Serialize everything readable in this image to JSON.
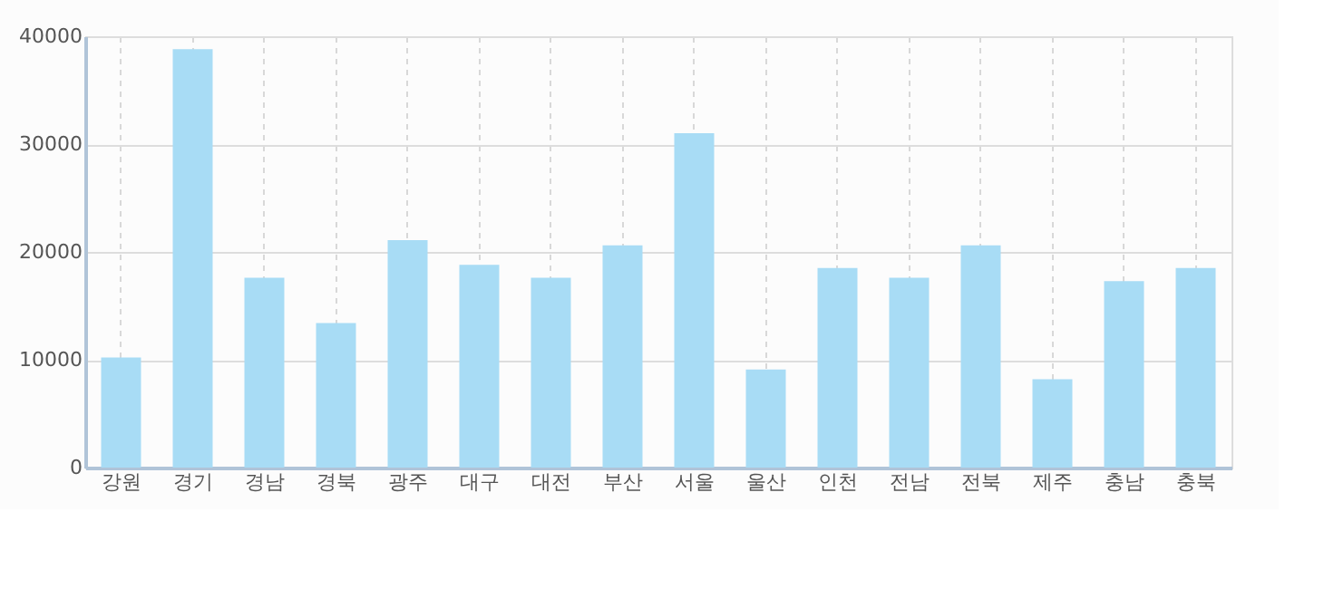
{
  "chart_data": {
    "type": "bar",
    "categories": [
      "강원",
      "경기",
      "경남",
      "경북",
      "광주",
      "대구",
      "대전",
      "부산",
      "서울",
      "울산",
      "인천",
      "전남",
      "전북",
      "제주",
      "충남",
      "충북"
    ],
    "series": [
      {
        "color": "#a8dcf5",
        "values": [
          10200,
          38800,
          17600,
          13400,
          21100,
          18800,
          17600,
          20600,
          31000,
          9100,
          18500,
          17600,
          20600,
          8200,
          17300,
          18500
        ]
      }
    ],
    "ylim": [
      0,
      40000
    ],
    "yticks": [
      0,
      10000,
      20000,
      30000,
      40000
    ],
    "grid": true,
    "legend": false
  }
}
